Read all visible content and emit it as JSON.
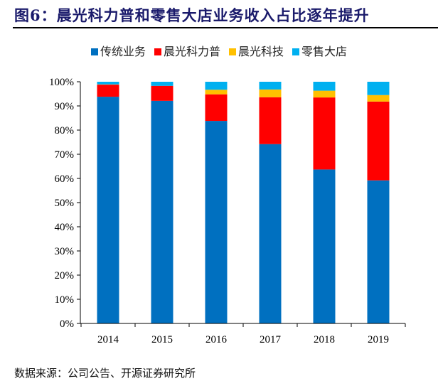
{
  "title": "图6：晨光科力普和零售大店业务收入占比逐年提升",
  "source": "数据来源：公司公告、开源证券研究所",
  "chart_data": {
    "type": "bar",
    "stacked": true,
    "percent": true,
    "title": "",
    "xlabel": "",
    "ylabel": "",
    "ylim": [
      0,
      100
    ],
    "yticks": [
      "0%",
      "10%",
      "20%",
      "30%",
      "40%",
      "50%",
      "60%",
      "70%",
      "80%",
      "90%",
      "100%"
    ],
    "grid": false,
    "legend_position": "top",
    "categories": [
      "2014",
      "2015",
      "2016",
      "2017",
      "2018",
      "2019"
    ],
    "series": [
      {
        "name": "传统业务",
        "color": "#0070c0",
        "values": [
          93.8,
          92.1,
          83.8,
          74.2,
          63.7,
          59.2
        ]
      },
      {
        "name": "晨光科力普",
        "color": "#ff0000",
        "values": [
          5.0,
          6.2,
          11.0,
          19.4,
          29.8,
          32.6
        ]
      },
      {
        "name": "晨光科技",
        "color": "#ffc000",
        "values": [
          0.1,
          0.0,
          1.9,
          3.2,
          2.8,
          2.7
        ]
      },
      {
        "name": "零售大店",
        "color": "#00b0f0",
        "values": [
          1.1,
          1.7,
          3.3,
          3.2,
          3.7,
          5.5
        ]
      }
    ]
  }
}
